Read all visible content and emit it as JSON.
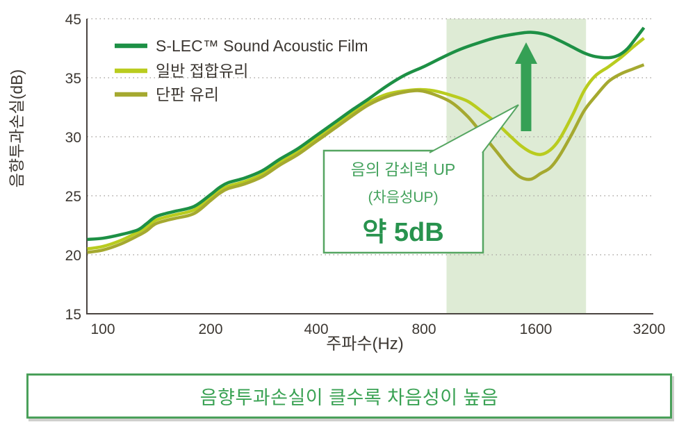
{
  "colors": {
    "s_lec_line": "#1d9045",
    "laminated_line": "#b9cc1f",
    "single_line": "#a5a930",
    "highlight_band": "#deebd5",
    "arrow_green": "#35a055",
    "annotation_border": "#55a561",
    "annotation_text": "#44a25d",
    "annotation_strong_text": "#28934e",
    "banner_border": "#4aa05a",
    "banner_text": "#3aa254",
    "axis_text": "#3c3732"
  },
  "chart_data": {
    "type": "line",
    "title": "",
    "xlabel": "주파수(Hz)",
    "ylabel": "음향투과손실(dB)",
    "x_scale": "log2",
    "x_ticks": [
      100,
      200,
      400,
      800,
      1600,
      3200
    ],
    "y_ticks": [
      45,
      35,
      30,
      25,
      20,
      15
    ],
    "y_gridlines": [
      45,
      35,
      30,
      25,
      20
    ],
    "grid": "dotted horizontal",
    "legend_position": "top-left inside",
    "x_range_hz": [
      90,
      3230
    ],
    "highlight_band_hz": [
      920,
      2175
    ],
    "series": [
      {
        "name": "S-LEC™ Sound Acoustic Film",
        "color": "#1d9045",
        "points": [
          [
            90,
            21.3
          ],
          [
            100,
            21.4
          ],
          [
            112,
            21.7
          ],
          [
            125,
            22.1
          ],
          [
            132,
            22.6
          ],
          [
            140,
            23.2
          ],
          [
            150,
            23.5
          ],
          [
            160,
            23.7
          ],
          [
            180,
            24.1
          ],
          [
            200,
            25.1
          ],
          [
            212,
            25.7
          ],
          [
            224,
            26.1
          ],
          [
            250,
            26.5
          ],
          [
            280,
            27.1
          ],
          [
            315,
            28.1
          ],
          [
            355,
            29.0
          ],
          [
            400,
            30.1
          ],
          [
            450,
            31.2
          ],
          [
            500,
            32.2
          ],
          [
            560,
            33.2
          ],
          [
            630,
            34.3
          ],
          [
            710,
            35.5
          ],
          [
            800,
            36.9
          ],
          [
            900,
            38.5
          ],
          [
            1000,
            39.8
          ],
          [
            1120,
            40.9
          ],
          [
            1250,
            41.8
          ],
          [
            1400,
            42.4
          ],
          [
            1550,
            42.7
          ],
          [
            1700,
            42.3
          ],
          [
            1850,
            41.3
          ],
          [
            2000,
            40.2
          ],
          [
            2150,
            39.2
          ],
          [
            2300,
            38.6
          ],
          [
            2500,
            38.4
          ],
          [
            2650,
            38.8
          ],
          [
            2800,
            39.9
          ],
          [
            2950,
            41.7
          ],
          [
            3100,
            43.5
          ]
        ]
      },
      {
        "name": "일반 접합유리",
        "color": "#b9cc1f",
        "points": [
          [
            90,
            20.5
          ],
          [
            100,
            20.7
          ],
          [
            112,
            21.2
          ],
          [
            125,
            21.9
          ],
          [
            132,
            22.3
          ],
          [
            140,
            22.9
          ],
          [
            150,
            23.2
          ],
          [
            160,
            23.4
          ],
          [
            180,
            23.8
          ],
          [
            200,
            24.8
          ],
          [
            212,
            25.4
          ],
          [
            224,
            25.8
          ],
          [
            250,
            26.2
          ],
          [
            280,
            26.8
          ],
          [
            315,
            27.8
          ],
          [
            355,
            28.7
          ],
          [
            400,
            29.8
          ],
          [
            450,
            30.9
          ],
          [
            500,
            31.9
          ],
          [
            560,
            32.9
          ],
          [
            630,
            33.6
          ],
          [
            710,
            33.9
          ],
          [
            780,
            34.0
          ],
          [
            850,
            33.9
          ],
          [
            950,
            33.5
          ],
          [
            1050,
            33.0
          ],
          [
            1150,
            32.1
          ],
          [
            1250,
            31.2
          ],
          [
            1350,
            30.2
          ],
          [
            1450,
            29.3
          ],
          [
            1550,
            28.7
          ],
          [
            1650,
            28.5
          ],
          [
            1750,
            28.9
          ],
          [
            1850,
            29.8
          ],
          [
            2000,
            31.8
          ],
          [
            2150,
            33.9
          ],
          [
            2300,
            35.3
          ],
          [
            2500,
            36.9
          ],
          [
            2700,
            38.5
          ],
          [
            2900,
            40.2
          ],
          [
            3100,
            41.7
          ]
        ]
      },
      {
        "name": "단판 유리",
        "color": "#a5a930",
        "points": [
          [
            90,
            20.2
          ],
          [
            100,
            20.4
          ],
          [
            112,
            20.9
          ],
          [
            125,
            21.6
          ],
          [
            132,
            22.0
          ],
          [
            140,
            22.6
          ],
          [
            150,
            22.9
          ],
          [
            160,
            23.1
          ],
          [
            180,
            23.5
          ],
          [
            200,
            24.6
          ],
          [
            212,
            25.2
          ],
          [
            224,
            25.6
          ],
          [
            250,
            26.0
          ],
          [
            280,
            26.6
          ],
          [
            315,
            27.6
          ],
          [
            355,
            28.5
          ],
          [
            400,
            29.6
          ],
          [
            450,
            30.7
          ],
          [
            500,
            31.7
          ],
          [
            560,
            32.7
          ],
          [
            630,
            33.4
          ],
          [
            710,
            33.8
          ],
          [
            780,
            33.9
          ],
          [
            850,
            33.6
          ],
          [
            950,
            32.9
          ],
          [
            1050,
            31.7
          ],
          [
            1150,
            30.2
          ],
          [
            1250,
            28.8
          ],
          [
            1350,
            27.5
          ],
          [
            1450,
            26.6
          ],
          [
            1550,
            26.4
          ],
          [
            1650,
            26.9
          ],
          [
            1750,
            27.4
          ],
          [
            1850,
            28.4
          ],
          [
            2000,
            30.3
          ],
          [
            2150,
            32.2
          ],
          [
            2300,
            33.4
          ],
          [
            2500,
            34.7
          ],
          [
            2700,
            35.7
          ],
          [
            2900,
            36.5
          ],
          [
            3100,
            37.2
          ]
        ]
      }
    ],
    "annotation_arrow": "upward green arrow inside highlight band at ~1450 Hz"
  },
  "axes": {
    "y_title": "음향투과손실(dB)",
    "x_title": "주파수(Hz)"
  },
  "annotation": {
    "line1": "음의 감쇠력 UP",
    "line2": "(차음성UP)",
    "line3": "약 5dB"
  },
  "banner": {
    "text": "음향투과손실이 클수록 차음성이 높음"
  }
}
